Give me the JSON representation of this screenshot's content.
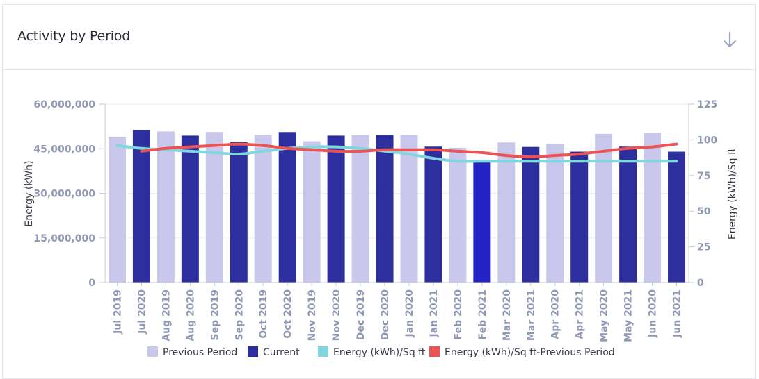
{
  "card": {
    "title": "Activity by Period",
    "download_icon": "arrow-down-icon"
  },
  "chart_data": {
    "type": "bar",
    "categories": [
      "Jul 2019",
      "Jul 2020",
      "Aug 2019",
      "Aug 2020",
      "Sep 2019",
      "Sep 2020",
      "Oct 2019",
      "Oct 2020",
      "Nov 2019",
      "Nov 2020",
      "Dec 2019",
      "Dec 2020",
      "Jan 2020",
      "Jan 2021",
      "Feb 2020",
      "Feb 2021",
      "Mar 2020",
      "Mar 2021",
      "Apr 2020",
      "Apr 2021",
      "May 2020",
      "May 2021",
      "Jun 2020",
      "Jun 2021"
    ],
    "series": [
      {
        "name": "Previous Period",
        "type": "bar",
        "axis": "left",
        "color": "#c9c8ec",
        "values": [
          49000000,
          null,
          50800000,
          null,
          50600000,
          null,
          49700000,
          null,
          47500000,
          null,
          49600000,
          null,
          49600000,
          null,
          45300000,
          null,
          47100000,
          null,
          46600000,
          null,
          50000000,
          null,
          50300000,
          null
        ]
      },
      {
        "name": "Current",
        "type": "bar",
        "axis": "left",
        "color": "#2e2f9e",
        "highlight_color": "#2424c4",
        "values": [
          null,
          51300000,
          null,
          49400000,
          null,
          47200000,
          null,
          50600000,
          null,
          49400000,
          null,
          49600000,
          null,
          45700000,
          null,
          40800000,
          null,
          45600000,
          null,
          44000000,
          null,
          45700000,
          null,
          44000000
        ]
      },
      {
        "name": "Energy (kWh)/Sq ft",
        "type": "line",
        "axis": "right",
        "color": "#7fd6dc",
        "values": [
          96,
          94,
          93,
          92,
          91,
          90,
          92,
          94,
          95,
          95,
          94,
          92,
          90,
          87,
          85,
          85,
          85,
          85,
          85,
          85,
          85,
          85,
          85,
          85
        ]
      },
      {
        "name": "Energy (kWh)/Sq ft-Previous Period",
        "type": "line",
        "axis": "right",
        "color": "#ea5454",
        "values": [
          null,
          92,
          94,
          95,
          96,
          97,
          96,
          94,
          93,
          92,
          92,
          93,
          93,
          93,
          92,
          91,
          89,
          88,
          89,
          90,
          92,
          94,
          95,
          97
        ]
      }
    ],
    "ylabel": "Energy (kWh)",
    "ylabel_right": "Energy (kWh)/Sq ft",
    "ylim": [
      0,
      60000000
    ],
    "ylim_right": [
      0,
      125
    ],
    "yticks": [
      "0",
      "15,000,000",
      "30,000,000",
      "45,000,000",
      "60,000,000"
    ],
    "yticks_right": [
      "0",
      "25",
      "50",
      "75",
      "100",
      "125"
    ],
    "grid": true,
    "legend": "bottom"
  }
}
